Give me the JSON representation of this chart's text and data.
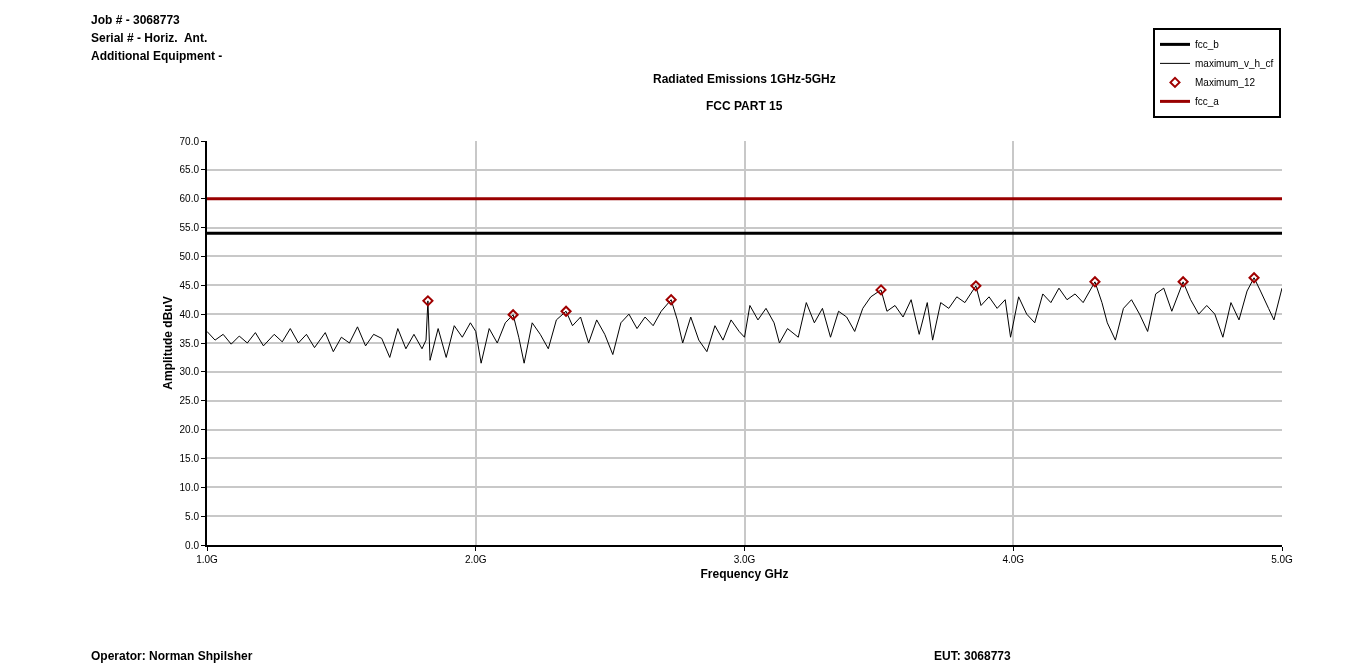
{
  "chart_data": {
    "type": "line",
    "title": "Radiated Emissions 1GHz-5GHz",
    "subtitle": "FCC PART 15",
    "xlabel": "Frequency GHz",
    "ylabel": "Amplitude dBuV",
    "annotations": [
      "Job # - 3068773",
      "Serial # - Horiz.  Ant.",
      "Additional Equipment -",
      "Operator: Norman Shpilsher",
      "EUT: 3068773"
    ],
    "xlim": [
      1,
      5
    ],
    "xticks": [
      {
        "value": 1,
        "label": "1.0G"
      },
      {
        "value": 2,
        "label": "2.0G"
      },
      {
        "value": 3,
        "label": "3.0G"
      },
      {
        "value": 4,
        "label": "4.0G"
      },
      {
        "value": 5,
        "label": "5.0G"
      }
    ],
    "ylim": [
      0,
      70
    ],
    "yticks": [
      {
        "value": 0,
        "label": "0.0"
      },
      {
        "value": 5,
        "label": "5.0"
      },
      {
        "value": 10,
        "label": "10.0"
      },
      {
        "value": 15,
        "label": "15.0"
      },
      {
        "value": 20,
        "label": "20.0"
      },
      {
        "value": 25,
        "label": "25.0"
      },
      {
        "value": 30,
        "label": "30.0"
      },
      {
        "value": 35,
        "label": "35.0"
      },
      {
        "value": 40,
        "label": "40.0"
      },
      {
        "value": 45,
        "label": "45.0"
      },
      {
        "value": 50,
        "label": "50.0"
      },
      {
        "value": 55,
        "label": "55.0"
      },
      {
        "value": 60,
        "label": "60.0"
      },
      {
        "value": 65,
        "label": "65.0"
      },
      {
        "value": 70,
        "label": "70.0"
      }
    ],
    "grid": true,
    "legend": "top right",
    "line_style": "solid",
    "series": [
      {
        "name": "fcc_b",
        "color": "#000000",
        "x": [
          1,
          5
        ],
        "values": [
          54,
          54
        ]
      },
      {
        "name": "maximum_v_h_cf",
        "color": "#000000",
        "x": [
          1.0,
          1.03,
          1.06,
          1.09,
          1.12,
          1.15,
          1.18,
          1.21,
          1.25,
          1.28,
          1.31,
          1.34,
          1.37,
          1.4,
          1.44,
          1.47,
          1.5,
          1.53,
          1.56,
          1.59,
          1.62,
          1.65,
          1.68,
          1.71,
          1.74,
          1.77,
          1.8,
          1.815,
          1.822,
          1.83,
          1.86,
          1.89,
          1.92,
          1.95,
          1.98,
          2.0,
          2.02,
          2.05,
          2.08,
          2.11,
          2.139,
          2.16,
          2.18,
          2.21,
          2.24,
          2.27,
          2.3,
          2.336,
          2.36,
          2.39,
          2.42,
          2.45,
          2.48,
          2.51,
          2.54,
          2.57,
          2.6,
          2.63,
          2.66,
          2.69,
          2.727,
          2.75,
          2.77,
          2.8,
          2.83,
          2.86,
          2.89,
          2.92,
          2.95,
          2.98,
          3.0,
          3.02,
          3.05,
          3.08,
          3.11,
          3.13,
          3.16,
          3.2,
          3.23,
          3.26,
          3.29,
          3.32,
          3.35,
          3.38,
          3.41,
          3.44,
          3.47,
          3.508,
          3.53,
          3.56,
          3.59,
          3.62,
          3.65,
          3.68,
          3.7,
          3.73,
          3.76,
          3.79,
          3.82,
          3.861,
          3.88,
          3.91,
          3.94,
          3.97,
          3.99,
          4.02,
          4.05,
          4.08,
          4.11,
          4.14,
          4.17,
          4.2,
          4.23,
          4.26,
          4.304,
          4.33,
          4.35,
          4.38,
          4.41,
          4.44,
          4.47,
          4.5,
          4.53,
          4.56,
          4.59,
          4.632,
          4.66,
          4.69,
          4.72,
          4.75,
          4.78,
          4.81,
          4.84,
          4.87,
          4.896,
          4.92,
          4.95,
          4.97,
          5.0
        ],
        "values": [
          37.0,
          35.5,
          36.5,
          34.8,
          36.2,
          35.0,
          36.8,
          34.5,
          36.5,
          35.2,
          37.5,
          35.0,
          36.5,
          34.2,
          36.8,
          33.5,
          36.0,
          35.0,
          37.8,
          34.5,
          36.5,
          35.8,
          32.5,
          37.5,
          34.0,
          36.5,
          34.0,
          35.5,
          42.3,
          32.0,
          37.5,
          32.5,
          38.0,
          36.0,
          38.5,
          37.0,
          31.5,
          37.5,
          35.0,
          38.5,
          39.9,
          36.0,
          31.5,
          38.5,
          36.5,
          34.0,
          39.0,
          40.5,
          38.0,
          39.5,
          35.0,
          39.0,
          36.5,
          33.0,
          38.5,
          40.0,
          37.5,
          39.5,
          38.0,
          40.5,
          42.5,
          39.0,
          35.0,
          39.5,
          35.5,
          33.5,
          38.0,
          35.5,
          39.0,
          37.0,
          36.0,
          41.5,
          39.0,
          41.0,
          38.5,
          35.0,
          37.5,
          36.0,
          42.0,
          38.5,
          41.0,
          36.0,
          40.5,
          39.5,
          37.0,
          41.0,
          43.0,
          44.2,
          40.5,
          41.5,
          39.5,
          42.5,
          36.5,
          42.0,
          35.5,
          42.0,
          41.0,
          43.0,
          42.0,
          44.9,
          41.5,
          43.0,
          41.0,
          42.5,
          36.0,
          43.0,
          40.0,
          38.5,
          43.5,
          42.0,
          44.5,
          42.5,
          43.5,
          42.0,
          45.6,
          42.0,
          38.5,
          35.5,
          41.0,
          42.5,
          40.0,
          37.0,
          43.5,
          44.5,
          40.5,
          45.6,
          42.5,
          40.0,
          41.5,
          40.0,
          36.0,
          42.0,
          39.0,
          44.0,
          46.3,
          44.0,
          41.0,
          39.0,
          44.5
        ]
      },
      {
        "name": "Maximum_12",
        "type": "scatter",
        "marker": "diamond",
        "color": "#a00000",
        "x": [
          1.822,
          2.139,
          2.336,
          2.727,
          3.508,
          3.861,
          4.304,
          4.632,
          4.896
        ],
        "values": [
          42.3,
          39.9,
          40.5,
          42.5,
          44.2,
          44.9,
          45.6,
          45.6,
          46.3
        ]
      },
      {
        "name": "fcc_a",
        "color": "#990000",
        "x": [
          1,
          5
        ],
        "values": [
          60,
          60
        ]
      }
    ]
  }
}
